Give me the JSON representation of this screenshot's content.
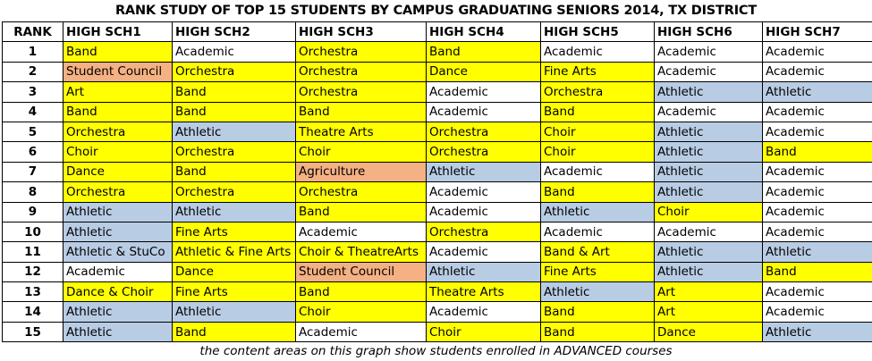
{
  "title": "RANK STUDY OF TOP 15 STUDENTS BY CAMPUS GRADUATING SENIORS 2014, TX DISTRICT",
  "colors": {
    "yellow": "#ffff00",
    "blue": "#b8cce4",
    "salmon": "#f4b183",
    "white": "#ffffff"
  },
  "headers": [
    "RANK",
    "HIGH SCH1",
    "HIGH SCH2",
    "HIGH SCH3",
    "HIGH SCH4",
    "HIGH SCH5",
    "HIGH SCH6",
    "HIGH SCH7"
  ],
  "rows": [
    {
      "rank": "1",
      "cells": [
        [
          "Band",
          "yellow"
        ],
        [
          "Academic",
          "white"
        ],
        [
          "Orchestra",
          "yellow"
        ],
        [
          "Band",
          "yellow"
        ],
        [
          "Academic",
          "white"
        ],
        [
          "Academic",
          "white"
        ],
        [
          "Academic",
          "white"
        ]
      ]
    },
    {
      "rank": "2",
      "cells": [
        [
          "Student Council",
          "salmon"
        ],
        [
          "Orchestra",
          "yellow"
        ],
        [
          "Orchestra",
          "yellow"
        ],
        [
          "Dance",
          "yellow"
        ],
        [
          "Fine Arts",
          "yellow"
        ],
        [
          "Academic",
          "white"
        ],
        [
          "Academic",
          "white"
        ]
      ]
    },
    {
      "rank": "3",
      "cells": [
        [
          "Art",
          "yellow"
        ],
        [
          "Band",
          "yellow"
        ],
        [
          "Orchestra",
          "yellow"
        ],
        [
          "Academic",
          "white"
        ],
        [
          "Orchestra",
          "yellow"
        ],
        [
          "Athletic",
          "blue"
        ],
        [
          "Athletic",
          "blue"
        ]
      ]
    },
    {
      "rank": "4",
      "cells": [
        [
          "Band",
          "yellow"
        ],
        [
          "Band",
          "yellow"
        ],
        [
          "Band",
          "yellow"
        ],
        [
          "Academic",
          "white"
        ],
        [
          "Band",
          "yellow"
        ],
        [
          "Academic",
          "white"
        ],
        [
          "Academic",
          "white"
        ]
      ]
    },
    {
      "rank": "5",
      "cells": [
        [
          "Orchestra",
          "yellow"
        ],
        [
          "Athletic",
          "blue"
        ],
        [
          "Theatre Arts",
          "yellow"
        ],
        [
          "Orchestra",
          "yellow"
        ],
        [
          "Choir",
          "yellow"
        ],
        [
          "Athletic",
          "blue"
        ],
        [
          "Academic",
          "white"
        ]
      ]
    },
    {
      "rank": "6",
      "cells": [
        [
          "Choir",
          "yellow"
        ],
        [
          "Orchestra",
          "yellow"
        ],
        [
          "Choir",
          "yellow"
        ],
        [
          "Orchestra",
          "yellow"
        ],
        [
          "Choir",
          "yellow"
        ],
        [
          "Athletic",
          "blue"
        ],
        [
          "Band",
          "yellow"
        ]
      ]
    },
    {
      "rank": "7",
      "cells": [
        [
          "Dance",
          "yellow"
        ],
        [
          "Band",
          "yellow"
        ],
        [
          "Agriculture",
          "salmon"
        ],
        [
          "Athletic",
          "blue"
        ],
        [
          "Academic",
          "white"
        ],
        [
          "Athletic",
          "blue"
        ],
        [
          "Academic",
          "white"
        ]
      ]
    },
    {
      "rank": "8",
      "cells": [
        [
          "Orchestra",
          "yellow"
        ],
        [
          "Orchestra",
          "yellow"
        ],
        [
          "Orchestra",
          "yellow"
        ],
        [
          "Academic",
          "white"
        ],
        [
          "Band",
          "yellow"
        ],
        [
          "Athletic",
          "blue"
        ],
        [
          "Academic",
          "white"
        ]
      ]
    },
    {
      "rank": "9",
      "cells": [
        [
          "Athletic",
          "blue"
        ],
        [
          "Athletic",
          "blue"
        ],
        [
          "Band",
          "yellow"
        ],
        [
          "Academic",
          "white"
        ],
        [
          "Athletic",
          "blue"
        ],
        [
          "Choir",
          "yellow"
        ],
        [
          "Academic",
          "white"
        ]
      ]
    },
    {
      "rank": "10",
      "cells": [
        [
          "Athletic",
          "blue"
        ],
        [
          "Fine Arts",
          "yellow"
        ],
        [
          "Academic",
          "white"
        ],
        [
          "Orchestra",
          "yellow"
        ],
        [
          "Academic",
          "white"
        ],
        [
          "Academic",
          "white"
        ],
        [
          "Academic",
          "white"
        ]
      ]
    },
    {
      "rank": "11",
      "cells": [
        [
          "Athletic & StuCo",
          "blue"
        ],
        [
          "Athletic & Fine Arts",
          "yellow"
        ],
        [
          "Choir & TheatreArts",
          "yellow"
        ],
        [
          "Academic",
          "white"
        ],
        [
          "Band & Art",
          "yellow"
        ],
        [
          "Athletic",
          "blue"
        ],
        [
          "Athletic",
          "blue"
        ]
      ]
    },
    {
      "rank": "12",
      "cells": [
        [
          "Academic",
          "white"
        ],
        [
          "Dance",
          "yellow"
        ],
        [
          "Student Council",
          "salmon"
        ],
        [
          "Athletic",
          "blue"
        ],
        [
          "Fine Arts",
          "yellow"
        ],
        [
          "Athletic",
          "blue"
        ],
        [
          "Band",
          "yellow"
        ]
      ]
    },
    {
      "rank": "13",
      "cells": [
        [
          "Dance & Choir",
          "yellow"
        ],
        [
          "Fine Arts",
          "yellow"
        ],
        [
          "Band",
          "yellow"
        ],
        [
          "Theatre Arts",
          "yellow"
        ],
        [
          "Athletic",
          "blue"
        ],
        [
          "Art",
          "yellow"
        ],
        [
          "Academic",
          "white"
        ]
      ]
    },
    {
      "rank": "14",
      "cells": [
        [
          "Athletic",
          "blue"
        ],
        [
          "Athletic",
          "blue"
        ],
        [
          "Choir",
          "yellow"
        ],
        [
          "Academic",
          "white"
        ],
        [
          "Band",
          "yellow"
        ],
        [
          "Art",
          "yellow"
        ],
        [
          "Academic",
          "white"
        ]
      ]
    },
    {
      "rank": "15",
      "cells": [
        [
          "Athletic",
          "blue"
        ],
        [
          "Band",
          "yellow"
        ],
        [
          "Academic",
          "white"
        ],
        [
          "Choir",
          "yellow"
        ],
        [
          "Band",
          "yellow"
        ],
        [
          "Dance",
          "yellow"
        ],
        [
          "Athletic",
          "blue"
        ]
      ]
    }
  ],
  "footnote": "the content areas on this graph show students enrolled in ADVANCED courses"
}
